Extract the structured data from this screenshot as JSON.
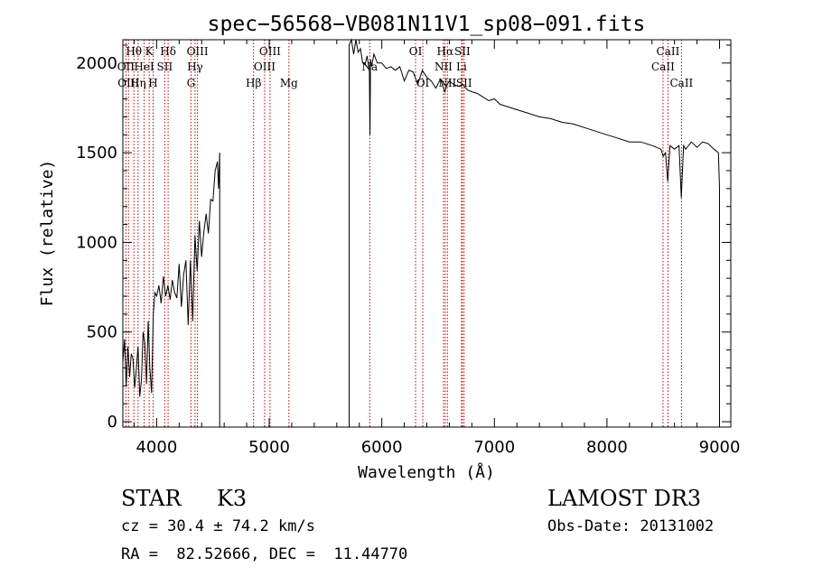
{
  "chart_data": {
    "type": "line",
    "title": "spec−56568−VB081N11V1_sp08−091.fits",
    "xlabel": "Wavelength (Å)",
    "ylabel": "Flux (relative)",
    "xlim": [
      3700,
      9100
    ],
    "ylim": [
      -30,
      2130
    ],
    "x_ticks": [
      4000,
      5000,
      6000,
      7000,
      8000,
      9000
    ],
    "y_ticks": [
      0,
      500,
      1000,
      1500,
      2000
    ],
    "series": [
      {
        "name": "flux",
        "x": [
          3700,
          3715,
          3730,
          3745,
          3760,
          3775,
          3790,
          3805,
          3820,
          3835,
          3850,
          3865,
          3880,
          3895,
          3910,
          3925,
          3940,
          3955,
          3970,
          3985,
          4000,
          4020,
          4040,
          4060,
          4080,
          4100,
          4120,
          4140,
          4160,
          4180,
          4200,
          4220,
          4240,
          4260,
          4280,
          4300,
          4320,
          4340,
          4360,
          4380,
          4400,
          4420,
          4440,
          4460,
          4480,
          4500,
          4520,
          4540,
          4550,
          4560,
          4560.1,
          5710,
          5710.1,
          5730,
          5750,
          5770,
          5790,
          5810,
          5830,
          5850,
          5870,
          5890,
          5895,
          5900,
          5910,
          5930,
          5960,
          6000,
          6040,
          6080,
          6120,
          6160,
          6200,
          6240,
          6280,
          6320,
          6360,
          6400,
          6440,
          6480,
          6520,
          6560,
          6580,
          6600,
          6640,
          6680,
          6720,
          6760,
          6800,
          6850,
          6900,
          6950,
          7000,
          7050,
          7100,
          7200,
          7300,
          7400,
          7500,
          7600,
          7700,
          7800,
          7900,
          8000,
          8100,
          8200,
          8300,
          8400,
          8480,
          8500,
          8520,
          8540,
          8560,
          8600,
          8640,
          8660,
          8680,
          8700,
          8750,
          8800,
          8850,
          8900,
          8950,
          8990,
          9000,
          9000.1
        ],
        "y": [
          330,
          460,
          200,
          420,
          250,
          380,
          350,
          190,
          300,
          420,
          140,
          230,
          500,
          440,
          210,
          560,
          300,
          160,
          600,
          720,
          700,
          760,
          660,
          810,
          700,
          760,
          680,
          790,
          720,
          690,
          880,
          640,
          820,
          900,
          540,
          900,
          560,
          1040,
          840,
          1120,
          920,
          1060,
          1160,
          1050,
          1240,
          1230,
          1400,
          1450,
          1300,
          1500,
          -30,
          -30,
          2100,
          2140,
          2050,
          2130,
          2060,
          2080,
          2000,
          1990,
          2040,
          1950,
          1600,
          2020,
          1980,
          2050,
          2000,
          2000,
          1970,
          1980,
          1960,
          1980,
          1900,
          1960,
          1950,
          1880,
          1960,
          1920,
          1900,
          1860,
          1910,
          1840,
          1880,
          1900,
          1880,
          1870,
          1880,
          1850,
          1840,
          1830,
          1810,
          1790,
          1800,
          1770,
          1760,
          1740,
          1720,
          1700,
          1690,
          1670,
          1660,
          1640,
          1620,
          1600,
          1580,
          1560,
          1560,
          1540,
          1520,
          1480,
          1500,
          1340,
          1540,
          1520,
          1540,
          1250,
          1540,
          1520,
          1560,
          1530,
          1560,
          1550,
          1520,
          1500,
          1300,
          -30
        ]
      }
    ],
    "lines": [
      {
        "name": "Hθ",
        "wavelength": 3798,
        "row": 1
      },
      {
        "name": "OII",
        "wavelength": 3727,
        "row": 2
      },
      {
        "name": "OIII",
        "wavelength": 3750,
        "row": 3
      },
      {
        "name": "Hη",
        "wavelength": 3835,
        "row": 3
      },
      {
        "name": "HeI",
        "wavelength": 3889,
        "row": 2
      },
      {
        "name": "K",
        "wavelength": 3934,
        "row": 1
      },
      {
        "name": "H",
        "wavelength": 3969,
        "row": 3
      },
      {
        "name": "SII",
        "wavelength": 4072,
        "row": 2
      },
      {
        "name": "Hδ",
        "wavelength": 4102,
        "row": 1
      },
      {
        "name": "OIII",
        "wavelength": 4363,
        "row": 1
      },
      {
        "name": "Hγ",
        "wavelength": 4341,
        "row": 2
      },
      {
        "name": "G",
        "wavelength": 4305,
        "row": 3
      },
      {
        "name": "OIII",
        "wavelength": 5007,
        "row": 1
      },
      {
        "name": "OIII",
        "wavelength": 4959,
        "row": 2
      },
      {
        "name": "Hβ",
        "wavelength": 4861,
        "row": 3
      },
      {
        "name": "Mg",
        "wavelength": 5175,
        "row": 3
      },
      {
        "name": "Na",
        "wavelength": 5893,
        "row": 2
      },
      {
        "name": "OI",
        "wavelength": 6300,
        "row": 1
      },
      {
        "name": "OI",
        "wavelength": 6364,
        "row": 3
      },
      {
        "name": "Hα",
        "wavelength": 6563,
        "row": 1
      },
      {
        "name": "NII",
        "wavelength": 6548,
        "row": 2
      },
      {
        "name": "NII",
        "wavelength": 6583,
        "row": 3
      },
      {
        "name": "SII",
        "wavelength": 6716,
        "row": 1
      },
      {
        "name": "Li",
        "wavelength": 6708,
        "row": 2
      },
      {
        "name": "SII",
        "wavelength": 6731,
        "row": 3
      },
      {
        "name": "CaII",
        "wavelength": 8542,
        "row": 1
      },
      {
        "name": "CaII",
        "wavelength": 8498,
        "row": 2
      },
      {
        "name": "CaII",
        "wavelength": 8662,
        "row": 3
      }
    ]
  },
  "info": {
    "object_class": "STAR",
    "subclass": "K3",
    "survey": "LAMOST DR3",
    "cz": "cz = 30.4 ± 74.2 km/s",
    "obs_date": "Obs-Date: 20131002",
    "coords": "RA =  82.52666, DEC =  11.44770"
  },
  "colors": {
    "axis": "#000000",
    "spectrum": "#000000",
    "line_marker": "#c00000"
  }
}
